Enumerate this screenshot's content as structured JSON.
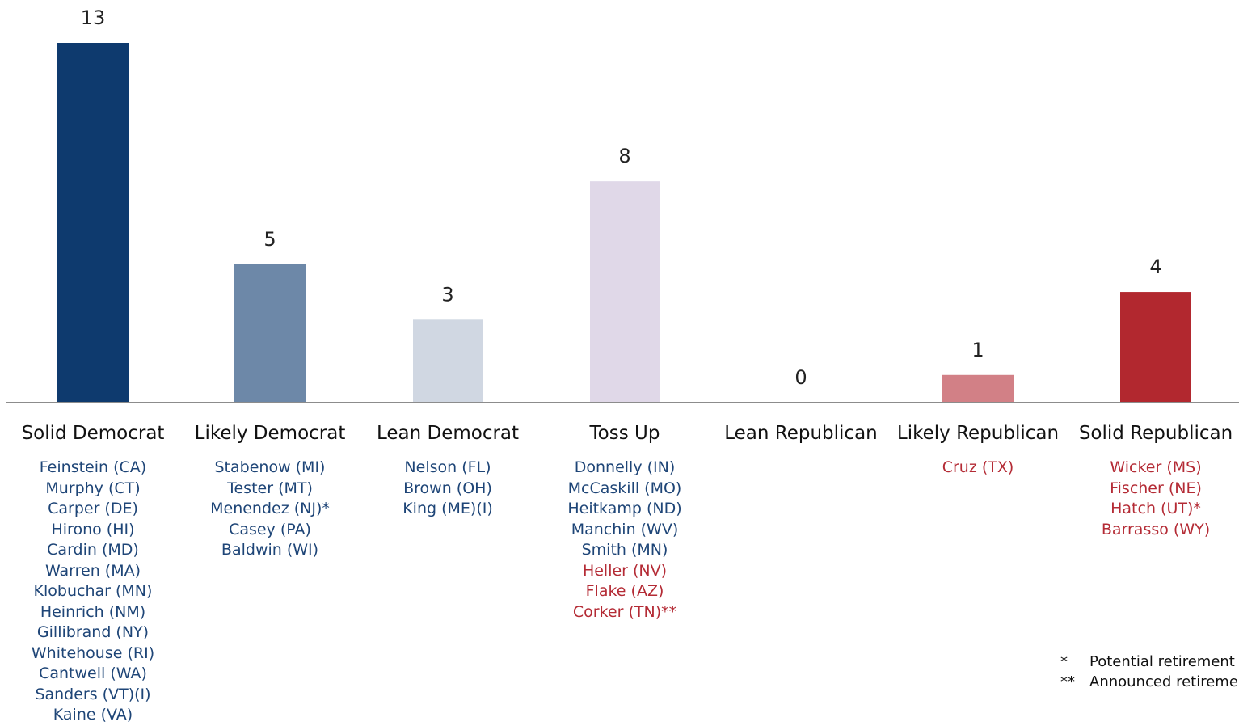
{
  "chart_data": {
    "type": "bar",
    "categories": [
      "Solid Democrat",
      "Likely Democrat",
      "Lean Democrat",
      "Toss Up",
      "Lean Republican",
      "Likely Republican",
      "Solid Republican"
    ],
    "values": [
      13,
      5,
      3,
      8,
      0,
      1,
      4
    ],
    "data_labels": [
      "13",
      "5",
      "3",
      "8",
      "0",
      "1",
      "4"
    ],
    "ylim": [
      0,
      13
    ],
    "grid": false,
    "colors": [
      "#0e3a6e",
      "#6d88a8",
      "#d0d7e2",
      "#e0d8e8",
      "#ffffff",
      "#d28086",
      "#b2282f"
    ],
    "senators": [
      [
        {
          "text": "Feinstein (CA)",
          "party": "dem"
        },
        {
          "text": "Murphy (CT)",
          "party": "dem"
        },
        {
          "text": "Carper (DE)",
          "party": "dem"
        },
        {
          "text": "Hirono (HI)",
          "party": "dem"
        },
        {
          "text": "Cardin (MD)",
          "party": "dem"
        },
        {
          "text": "Warren (MA)",
          "party": "dem"
        },
        {
          "text": "Klobuchar (MN)",
          "party": "dem"
        },
        {
          "text": "Heinrich (NM)",
          "party": "dem"
        },
        {
          "text": "Gillibrand (NY)",
          "party": "dem"
        },
        {
          "text": "Whitehouse (RI)",
          "party": "dem"
        },
        {
          "text": "Cantwell (WA)",
          "party": "dem"
        },
        {
          "text": "Sanders (VT)(I)",
          "party": "dem"
        },
        {
          "text": "Kaine (VA)",
          "party": "dem"
        }
      ],
      [
        {
          "text": "Stabenow (MI)",
          "party": "dem"
        },
        {
          "text": "Tester (MT)",
          "party": "dem"
        },
        {
          "text": "Menendez (NJ)*",
          "party": "dem"
        },
        {
          "text": "Casey (PA)",
          "party": "dem"
        },
        {
          "text": "Baldwin (WI)",
          "party": "dem"
        }
      ],
      [
        {
          "text": "Nelson (FL)",
          "party": "dem"
        },
        {
          "text": "Brown (OH)",
          "party": "dem"
        },
        {
          "text": "King (ME)(I)",
          "party": "dem"
        }
      ],
      [
        {
          "text": "Donnelly (IN)",
          "party": "dem"
        },
        {
          "text": "McCaskill (MO)",
          "party": "dem"
        },
        {
          "text": "Heitkamp (ND)",
          "party": "dem"
        },
        {
          "text": "Manchin (WV)",
          "party": "dem"
        },
        {
          "text": "Smith (MN)",
          "party": "dem"
        },
        {
          "text": "Heller (NV)",
          "party": "rep"
        },
        {
          "text": "Flake (AZ)",
          "party": "rep"
        },
        {
          "text": "Corker (TN)**",
          "party": "rep"
        }
      ],
      [],
      [
        {
          "text": "Cruz (TX)",
          "party": "rep"
        }
      ],
      [
        {
          "text": "Wicker (MS)",
          "party": "rep"
        },
        {
          "text": "Fischer (NE)",
          "party": "rep"
        },
        {
          "text": "Hatch (UT)*",
          "party": "rep"
        },
        {
          "text": "Barrasso (WY)",
          "party": "rep"
        }
      ]
    ]
  },
  "party_colors": {
    "dem": "#1e4577",
    "rep": "#b42b35"
  },
  "axis_color": "#8c8c8c",
  "notes": [
    {
      "mark": "*",
      "text": "Potential retirement"
    },
    {
      "mark": "**",
      "text": "Announced retirement"
    }
  ]
}
